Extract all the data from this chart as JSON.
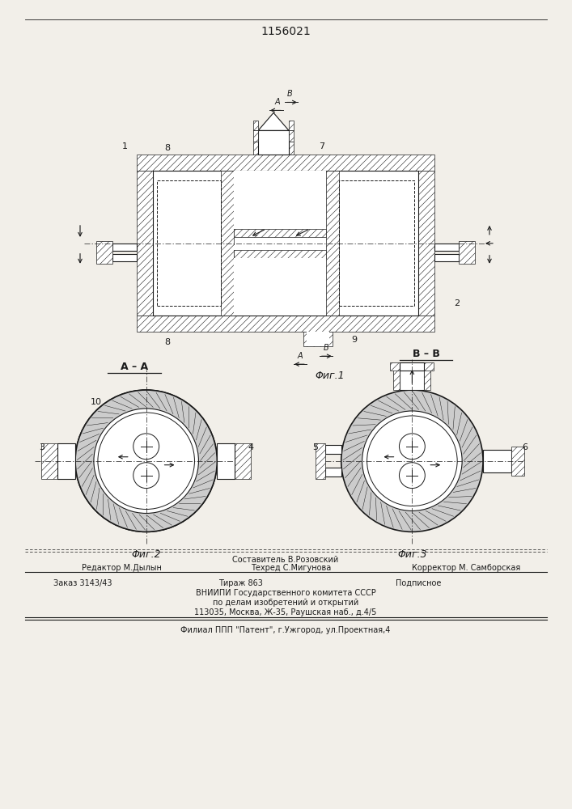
{
  "title": "1156021",
  "fig1_label": "Φиг.1",
  "fig2_label": "Φиг.2",
  "fig3_label": "Φиг.3",
  "footer_line1": "Составитель В.Розовский",
  "footer_line2_left": "Редактор М.Дылын",
  "footer_line2_mid": "Техред С.Мигунова",
  "footer_line2_right": "Корректор М. Самборская",
  "footer_line3_left": "Заказ 3143/43",
  "footer_line3_mid": "Тираж 863",
  "footer_line3_right": "Подписное",
  "footer_line4": "ВНИИПИ Государственного комитета СССР",
  "footer_line5": "по делам изобретений и открытий",
  "footer_line6": "113035, Москва, Ж-35, Раушская наб., д.4/5",
  "footer_line7": "Филиал ППП \"Патент\", г.Ужгород, ул.Проектная,4",
  "bg_color": "#f2efe9",
  "line_color": "#1a1a1a"
}
